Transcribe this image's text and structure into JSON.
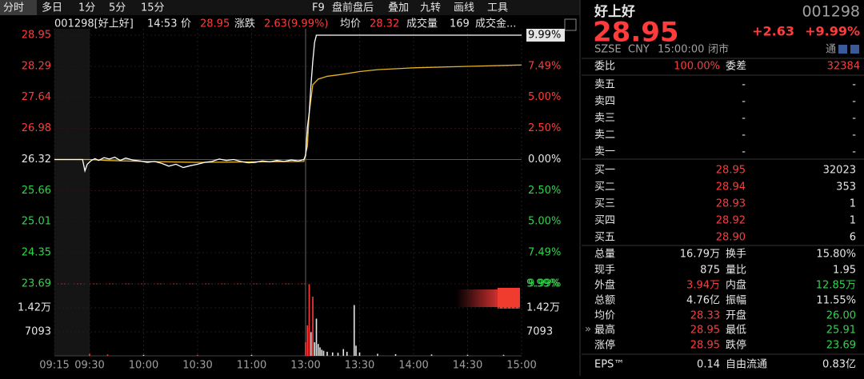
{
  "toolbar": {
    "tabs": [
      "分时",
      "多日",
      "1分",
      "5分",
      "15分"
    ],
    "tools": [
      "F9",
      "盘前盘后",
      "叠加",
      "九转",
      "画线",
      "工具"
    ]
  },
  "info": {
    "code": "001298[好上好]",
    "time": "14:53",
    "price_label": "价",
    "price": "28.95",
    "change_label": "涨跌",
    "change": "2.63(9.99%)",
    "avg_label": "均价",
    "avg": "28.32",
    "vol_label": "成交量",
    "vol": "169",
    "amount_label": "成交金..."
  },
  "chart": {
    "type": "line",
    "xlim": [
      -15,
      240
    ],
    "xticks": [
      {
        "value": -15,
        "label": "09:15"
      },
      {
        "value": 0,
        "label": "09:30"
      },
      {
        "value": 30,
        "label": "10:00"
      },
      {
        "value": 60,
        "label": "10:30"
      },
      {
        "value": 90,
        "label": "11:00"
      },
      {
        "value": 120,
        "label": "13:00"
      },
      {
        "value": 150,
        "label": "13:30"
      },
      {
        "value": 180,
        "label": "14:00"
      },
      {
        "value": 210,
        "label": "14:30"
      },
      {
        "value": 240,
        "label": "15:00"
      }
    ],
    "ylim": [
      23.69,
      28.95
    ],
    "price_ticks": [
      28.95,
      28.29,
      27.64,
      26.98,
      26.32,
      25.66,
      25.01,
      24.35,
      23.69
    ],
    "pct_ticks": [
      "9.99%",
      "7.49%",
      "5.00%",
      "2.50%",
      "0.00%",
      "2.50%",
      "5.00%",
      "7.49%",
      "9.99%"
    ],
    "price": {
      "color": "#ffffff",
      "x": [
        -15,
        -3,
        -2,
        -1,
        1,
        3,
        5,
        8,
        11,
        14,
        17,
        20,
        24,
        28,
        32,
        36,
        40,
        44,
        48,
        52,
        56,
        60,
        64,
        68,
        72,
        76,
        80,
        84,
        88,
        92,
        96,
        100,
        104,
        108,
        112,
        116,
        119,
        120,
        121,
        122,
        123,
        124,
        125,
        126,
        240
      ],
      "values": [
        26.32,
        26.32,
        26.08,
        26.22,
        26.3,
        26.34,
        26.3,
        26.36,
        26.33,
        26.37,
        26.3,
        26.35,
        26.31,
        26.29,
        26.26,
        26.28,
        26.24,
        26.18,
        26.22,
        26.15,
        26.19,
        26.22,
        26.26,
        26.28,
        26.33,
        26.3,
        26.32,
        26.28,
        26.25,
        26.26,
        26.29,
        26.27,
        26.3,
        26.28,
        26.31,
        26.29,
        26.32,
        26.4,
        27.0,
        27.3,
        27.9,
        28.4,
        28.8,
        28.95,
        28.95
      ]
    },
    "avg": {
      "color": "#e6b422",
      "x": [
        -15,
        0,
        10,
        30,
        60,
        90,
        119,
        121,
        122,
        124,
        127,
        132,
        140,
        150,
        160,
        180,
        210,
        240
      ],
      "values": [
        26.32,
        26.32,
        26.3,
        26.28,
        26.26,
        26.27,
        26.28,
        26.6,
        27.3,
        27.9,
        28.02,
        28.08,
        28.12,
        28.18,
        28.22,
        28.26,
        28.29,
        28.32
      ]
    },
    "vol_ylim": [
      0,
      21279
    ],
    "vol_ticks": [
      {
        "value": 14186,
        "label": "1.42万"
      },
      7093
    ],
    "vol_pct_label": "9.99%",
    "volume": {
      "x": [
        0,
        10,
        30,
        60,
        90,
        120,
        121,
        122,
        123,
        124,
        125,
        126,
        127,
        128,
        129,
        130,
        132,
        135,
        138,
        141,
        143,
        147,
        148,
        150,
        160,
        170,
        190,
        210,
        230
      ],
      "values": [
        600,
        400,
        300,
        300,
        300,
        4000,
        9000,
        21200,
        7000,
        17500,
        4000,
        11000,
        3500,
        2500,
        1800,
        1500,
        1200,
        1000,
        900,
        2000,
        1200,
        15000,
        3000,
        1000,
        600,
        500,
        400,
        300,
        300
      ],
      "colors": [
        "#ff3b3b",
        "#ff3b3b",
        "#e6e6e6",
        "#ff3b3b",
        "#e6e6e6",
        "#ff3b3b",
        "#ff3b3b",
        "#ff3b3b",
        "#e6e6e6",
        "#ff3b3b",
        "#e6e6e6",
        "#e6e6e6",
        "#e6e6e6",
        "#e6e6e6",
        "#e6e6e6",
        "#e6e6e6",
        "#e6e6e6",
        "#e6e6e6",
        "#e6e6e6",
        "#e6e6e6",
        "#e6e6e6",
        "#e6e6e6",
        "#e6e6e6",
        "#e6e6e6",
        "#e6e6e6",
        "#e6e6e6",
        "#e6e6e6",
        "#e6e6e6",
        "#e6e6e6"
      ]
    }
  },
  "quote": {
    "name": "好上好",
    "code": "001298",
    "price": "28.95",
    "change": "+2.63",
    "change_pct": "+9.99%",
    "meta": [
      "SZSE",
      "CNY",
      "15:00:00",
      "闭市"
    ],
    "tong": "通",
    "wei": [
      "委比",
      "100.00%",
      "委差",
      "32384"
    ],
    "asks": [
      [
        "卖五",
        "-",
        "-"
      ],
      [
        "卖四",
        "-",
        "-"
      ],
      [
        "卖三",
        "-",
        "-"
      ],
      [
        "卖二",
        "-",
        "-"
      ],
      [
        "卖一",
        "-",
        "-"
      ]
    ],
    "bids": [
      [
        "买一",
        "28.95",
        "32023"
      ],
      [
        "买二",
        "28.94",
        "353"
      ],
      [
        "买三",
        "28.93",
        "1"
      ],
      [
        "买四",
        "28.92",
        "1"
      ],
      [
        "买五",
        "28.90",
        "6"
      ]
    ],
    "stats": [
      [
        "总量",
        "16.79万",
        "换手",
        "15.80%"
      ],
      [
        "现手",
        "875",
        "量比",
        "1.95"
      ],
      [
        "外盘",
        "3.94万",
        "内盘",
        "12.85万"
      ],
      [
        "总额",
        "4.76亿",
        "振幅",
        "11.55%"
      ],
      [
        "均价",
        "28.33",
        "开盘",
        "26.00"
      ],
      [
        "最高",
        "28.95",
        "最低",
        "25.91"
      ],
      [
        "涨停",
        "28.95",
        "跌停",
        "23.69"
      ]
    ],
    "eps": [
      "EPS™",
      "0.14",
      "自由流通",
      "0.83亿"
    ]
  }
}
